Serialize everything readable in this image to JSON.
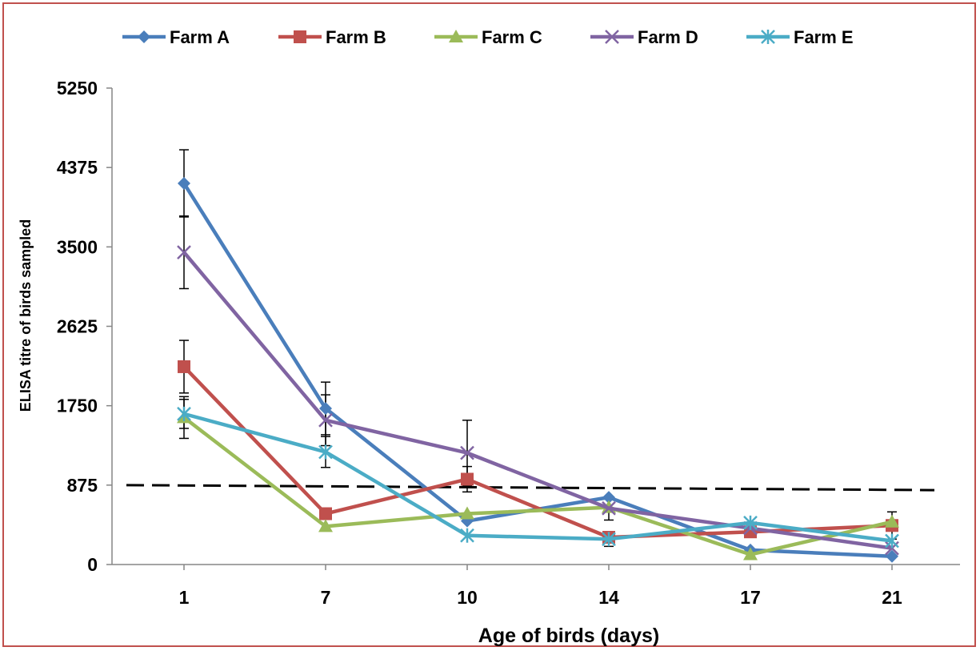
{
  "chart_data": {
    "type": "line",
    "title": "",
    "xlabel": "Age of birds (days)",
    "ylabel": "ELISA titre of birds sampled",
    "categories": [
      "1",
      "7",
      "10",
      "14",
      "17",
      "21"
    ],
    "ylim": [
      0,
      5250
    ],
    "yticks": [
      0,
      875,
      1750,
      2625,
      3500,
      4375,
      5250
    ],
    "grid": false,
    "legend_position": "top",
    "series": [
      {
        "name": "Farm A",
        "color": "#4a7ebb",
        "marker": "diamond",
        "values": [
          4200,
          1720,
          480,
          740,
          160,
          90
        ],
        "error": [
          370,
          290,
          null,
          null,
          null,
          null
        ]
      },
      {
        "name": "Farm B",
        "color": "#c0504d",
        "marker": "square",
        "values": [
          2180,
          560,
          940,
          300,
          360,
          430
        ],
        "error": [
          290,
          null,
          140,
          null,
          null,
          150
        ]
      },
      {
        "name": "Farm C",
        "color": "#9bbb59",
        "marker": "triangle",
        "values": [
          1620,
          420,
          560,
          630,
          110,
          470
        ],
        "error": [
          230,
          null,
          null,
          null,
          null,
          null
        ]
      },
      {
        "name": "Farm D",
        "color": "#8064a2",
        "marker": "x",
        "values": [
          3440,
          1590,
          1230,
          620,
          400,
          180
        ],
        "error": [
          400,
          280,
          360,
          130,
          null,
          null
        ]
      },
      {
        "name": "Farm E",
        "color": "#4bacc6",
        "marker": "asterisk",
        "values": [
          1660,
          1240,
          320,
          280,
          460,
          260
        ],
        "error": [
          160,
          170,
          null,
          80,
          null,
          null
        ]
      }
    ],
    "threshold_line": {
      "style": "dashed",
      "color": "#000000",
      "y_start": 875,
      "y_end": 820
    }
  }
}
